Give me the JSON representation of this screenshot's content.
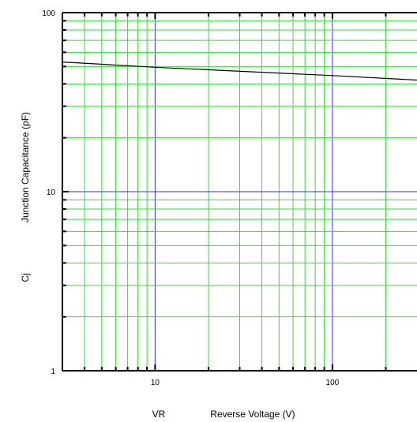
{
  "chart_data": {
    "type": "line",
    "title": "",
    "xlabel": {
      "symbol": "VR",
      "text": "Reverse Voltage  (V)"
    },
    "ylabel": {
      "symbol": "Cj",
      "text": "Junction Capacitance   (pF)"
    },
    "x_scale": "log",
    "y_scale": "log",
    "xlim": [
      3,
      300
    ],
    "ylim": [
      1,
      100
    ],
    "x_tick_labels": [
      {
        "value": 10,
        "label": "10"
      },
      {
        "value": 100,
        "label": "100"
      }
    ],
    "y_tick_labels": [
      {
        "value": 1,
        "label": "1"
      },
      {
        "value": 10,
        "label": "10"
      },
      {
        "value": 100,
        "label": "100"
      }
    ],
    "grid": true,
    "series": [
      {
        "x": [
          3,
          10,
          100,
          300
        ],
        "y": [
          53,
          49.5,
          44.5,
          42
        ]
      }
    ]
  },
  "colors": {
    "minor_grid": "#33dd33",
    "major_grid": "#3333cc",
    "frame": "#000000",
    "series_line": "#000000"
  }
}
